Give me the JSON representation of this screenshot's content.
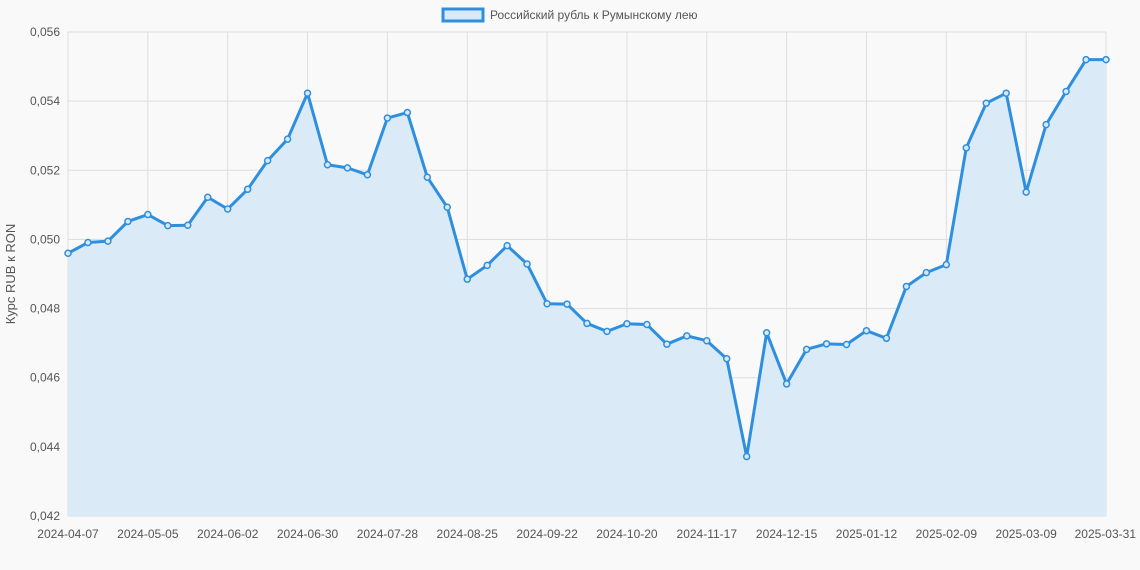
{
  "chart_data": {
    "type": "line",
    "title": "",
    "xlabel": "",
    "ylabel": "Курс RUB к RON",
    "ylim": [
      0.042,
      0.056
    ],
    "y_ticks": [
      "0,042",
      "0,044",
      "0,046",
      "0,048",
      "0,050",
      "0,052",
      "0,054",
      "0,056"
    ],
    "y_tick_values": [
      0.042,
      0.044,
      0.046,
      0.048,
      0.05,
      0.052,
      0.054,
      0.056
    ],
    "x_ticks": [
      "2024-04-07",
      "2024-05-05",
      "2024-06-02",
      "2024-06-30",
      "2024-07-28",
      "2024-08-25",
      "2024-09-22",
      "2024-10-20",
      "2024-11-17",
      "2024-12-15",
      "2025-01-12",
      "2025-02-09",
      "2025-03-09",
      "2025-03-31"
    ],
    "grid": true,
    "legend_position": "top-center",
    "fill": true,
    "colors": {
      "line": "#2f8fdf",
      "fill": "#d9e9f7",
      "grid": "#dddddd",
      "background": "#f9f9f9"
    },
    "series": [
      {
        "name": "Российский рубль к Румынскому лею",
        "values": [
          0.0496,
          0.04991,
          0.04995,
          0.05052,
          0.05072,
          0.0504,
          0.05041,
          0.05122,
          0.05088,
          0.05145,
          0.05228,
          0.0529,
          0.05423,
          0.05216,
          0.05207,
          0.05187,
          0.05351,
          0.05367,
          0.0518,
          0.05093,
          0.04885,
          0.04925,
          0.04982,
          0.04929,
          0.04814,
          0.04813,
          0.04757,
          0.04734,
          0.04756,
          0.04754,
          0.04697,
          0.04721,
          0.04707,
          0.04655,
          0.04372,
          0.0473,
          0.04582,
          0.04682,
          0.04698,
          0.04696,
          0.04736,
          0.04714,
          0.04864,
          0.04904,
          0.04927,
          0.05265,
          0.05394,
          0.05423,
          0.05137,
          0.05332,
          0.05428,
          0.0552,
          0.0552
        ]
      }
    ]
  }
}
